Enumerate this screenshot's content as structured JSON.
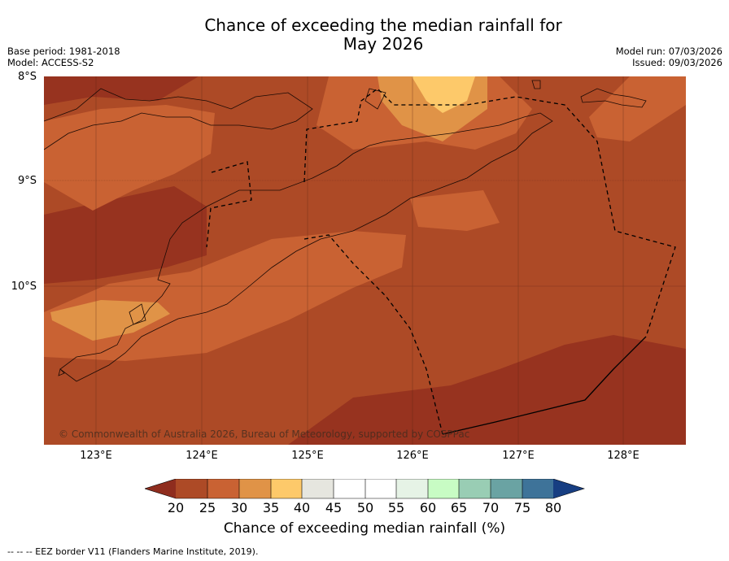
{
  "title_line1": "Chance of exceeding the median rainfall for",
  "title_line2": "May 2026",
  "base_period": "Base period: 1981-2018",
  "model": "Model: ACCESS-S2",
  "model_run": "Model run: 07/03/2026",
  "issued": "Issued: 09/03/2026",
  "latitudes": [
    "8°S",
    "9°S",
    "10°S"
  ],
  "longitudes": [
    "123°E",
    "124°E",
    "125°E",
    "126°E",
    "127°E",
    "128°E"
  ],
  "copyright": "© Commonwealth of Australia 2026, Bureau of Meteorology, supported by COSPPac",
  "colorbar": {
    "ticks": [
      "20",
      "25",
      "30",
      "35",
      "40",
      "45",
      "50",
      "55",
      "60",
      "65",
      "70",
      "75",
      "80"
    ],
    "colors": [
      "#8f2d1e",
      "#ad4a26",
      "#c96233",
      "#e09347",
      "#fdc96a",
      "#e6e6df",
      "#ffffff",
      "#ffffff",
      "#e6f3e6",
      "#c8fcc4",
      "#99cdb4",
      "#6aa3a3",
      "#3e7399",
      "#173e82"
    ],
    "label": "Chance of exceeding median rainfall (%)"
  },
  "footer": "--  --  -- EEZ border V11 (Flanders Marine Institute, 2019)."
}
